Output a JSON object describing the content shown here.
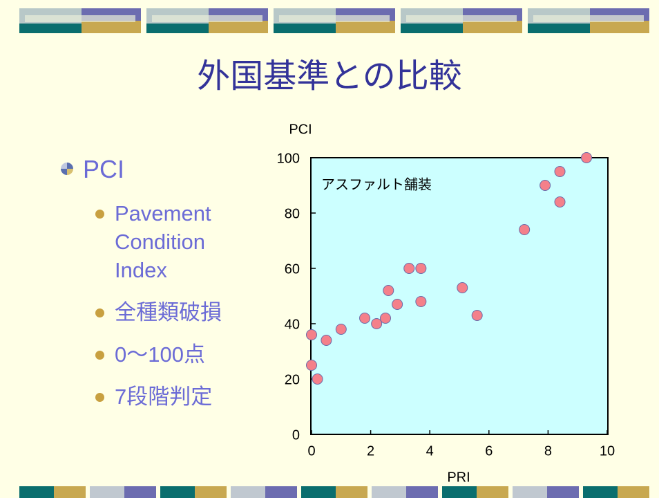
{
  "slide": {
    "title": "外国基準との比較",
    "bullet": "PCI",
    "sub_bullets": [
      "Pavement Condition Index",
      "全種類破損",
      "0〜100点",
      "7段階判定"
    ]
  },
  "chart_data": {
    "type": "scatter",
    "y_label": "PCI",
    "x_label": "PRI",
    "annotation": "アスファルト舗装",
    "x": [
      0,
      0,
      0.2,
      0.5,
      1.0,
      1.8,
      2.2,
      2.5,
      2.6,
      2.9,
      3.3,
      3.7,
      3.7,
      5.1,
      5.6,
      7.2,
      7.9,
      8.4,
      8.4,
      9.3
    ],
    "values": [
      36,
      25,
      20,
      34,
      38,
      42,
      40,
      42,
      52,
      47,
      60,
      60,
      48,
      53,
      43,
      74,
      90,
      95,
      84,
      100
    ],
    "color": "#f4808a",
    "xlim": [
      0,
      10
    ],
    "xticks": [
      0,
      2,
      4,
      6,
      8,
      10
    ],
    "ylim": [
      0,
      100
    ],
    "yticks": [
      0,
      20,
      40,
      60,
      80,
      100
    ]
  }
}
